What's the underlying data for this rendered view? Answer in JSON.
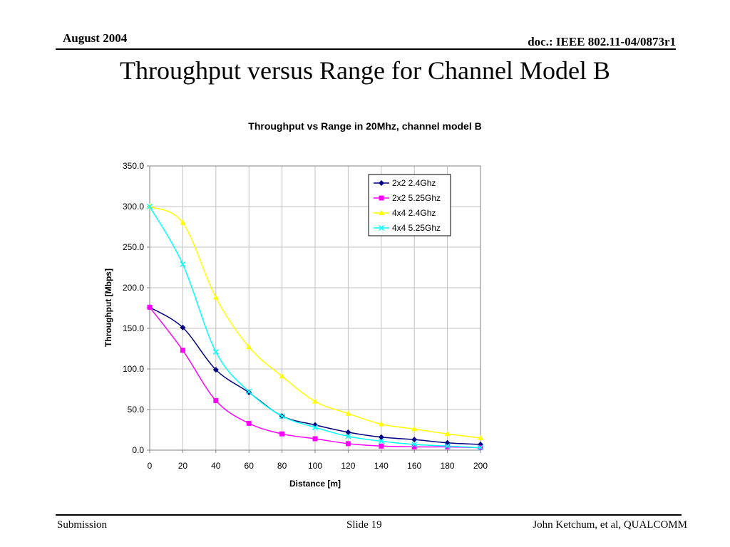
{
  "header": {
    "date": "August 2004",
    "doc": "doc.: IEEE 802.11-04/0873r1"
  },
  "slide": {
    "title": "Throughput versus Range for Channel Model B"
  },
  "footer": {
    "left": "Submission",
    "center": "Slide 19",
    "right": "John Ketchum, et al, QUALCOMM"
  },
  "chart_data": {
    "type": "line",
    "title": "Throughput vs Range in 20Mhz, channel model B",
    "xlabel": "Distance [m]",
    "ylabel": "Throughput [Mbps]",
    "x": [
      0,
      20,
      40,
      60,
      80,
      100,
      120,
      140,
      160,
      180,
      200
    ],
    "xticks": [
      "0",
      "20",
      "40",
      "60",
      "80",
      "100",
      "120",
      "140",
      "160",
      "180",
      "200"
    ],
    "xlim": [
      0,
      200
    ],
    "ylim": [
      0,
      350
    ],
    "yticks": [
      "0.0",
      "50.0",
      "100.0",
      "150.0",
      "200.0",
      "250.0",
      "300.0",
      "350.0"
    ],
    "grid": true,
    "legend_position": "top-right",
    "series": [
      {
        "name": "2x2 2.4Ghz",
        "color": "#000080",
        "marker": "diamond",
        "values": [
          176,
          151,
          99,
          71,
          42,
          31,
          22,
          16,
          13,
          9,
          7
        ]
      },
      {
        "name": "2x2 5.25Ghz",
        "color": "#ff00ff",
        "marker": "square",
        "values": [
          176,
          123,
          61,
          33,
          20,
          14,
          8,
          5,
          4,
          4,
          3
        ]
      },
      {
        "name": "4x4 2.4Ghz",
        "color": "#ffff00",
        "marker": "triangle",
        "values": [
          300,
          280,
          188,
          127,
          91,
          60,
          45,
          32,
          26,
          20,
          15
        ]
      },
      {
        "name": "4x4 5.25Ghz",
        "color": "#00ffff",
        "marker": "x",
        "values": [
          300,
          229,
          121,
          72,
          42,
          28,
          17,
          11,
          7,
          5,
          3
        ]
      }
    ]
  }
}
